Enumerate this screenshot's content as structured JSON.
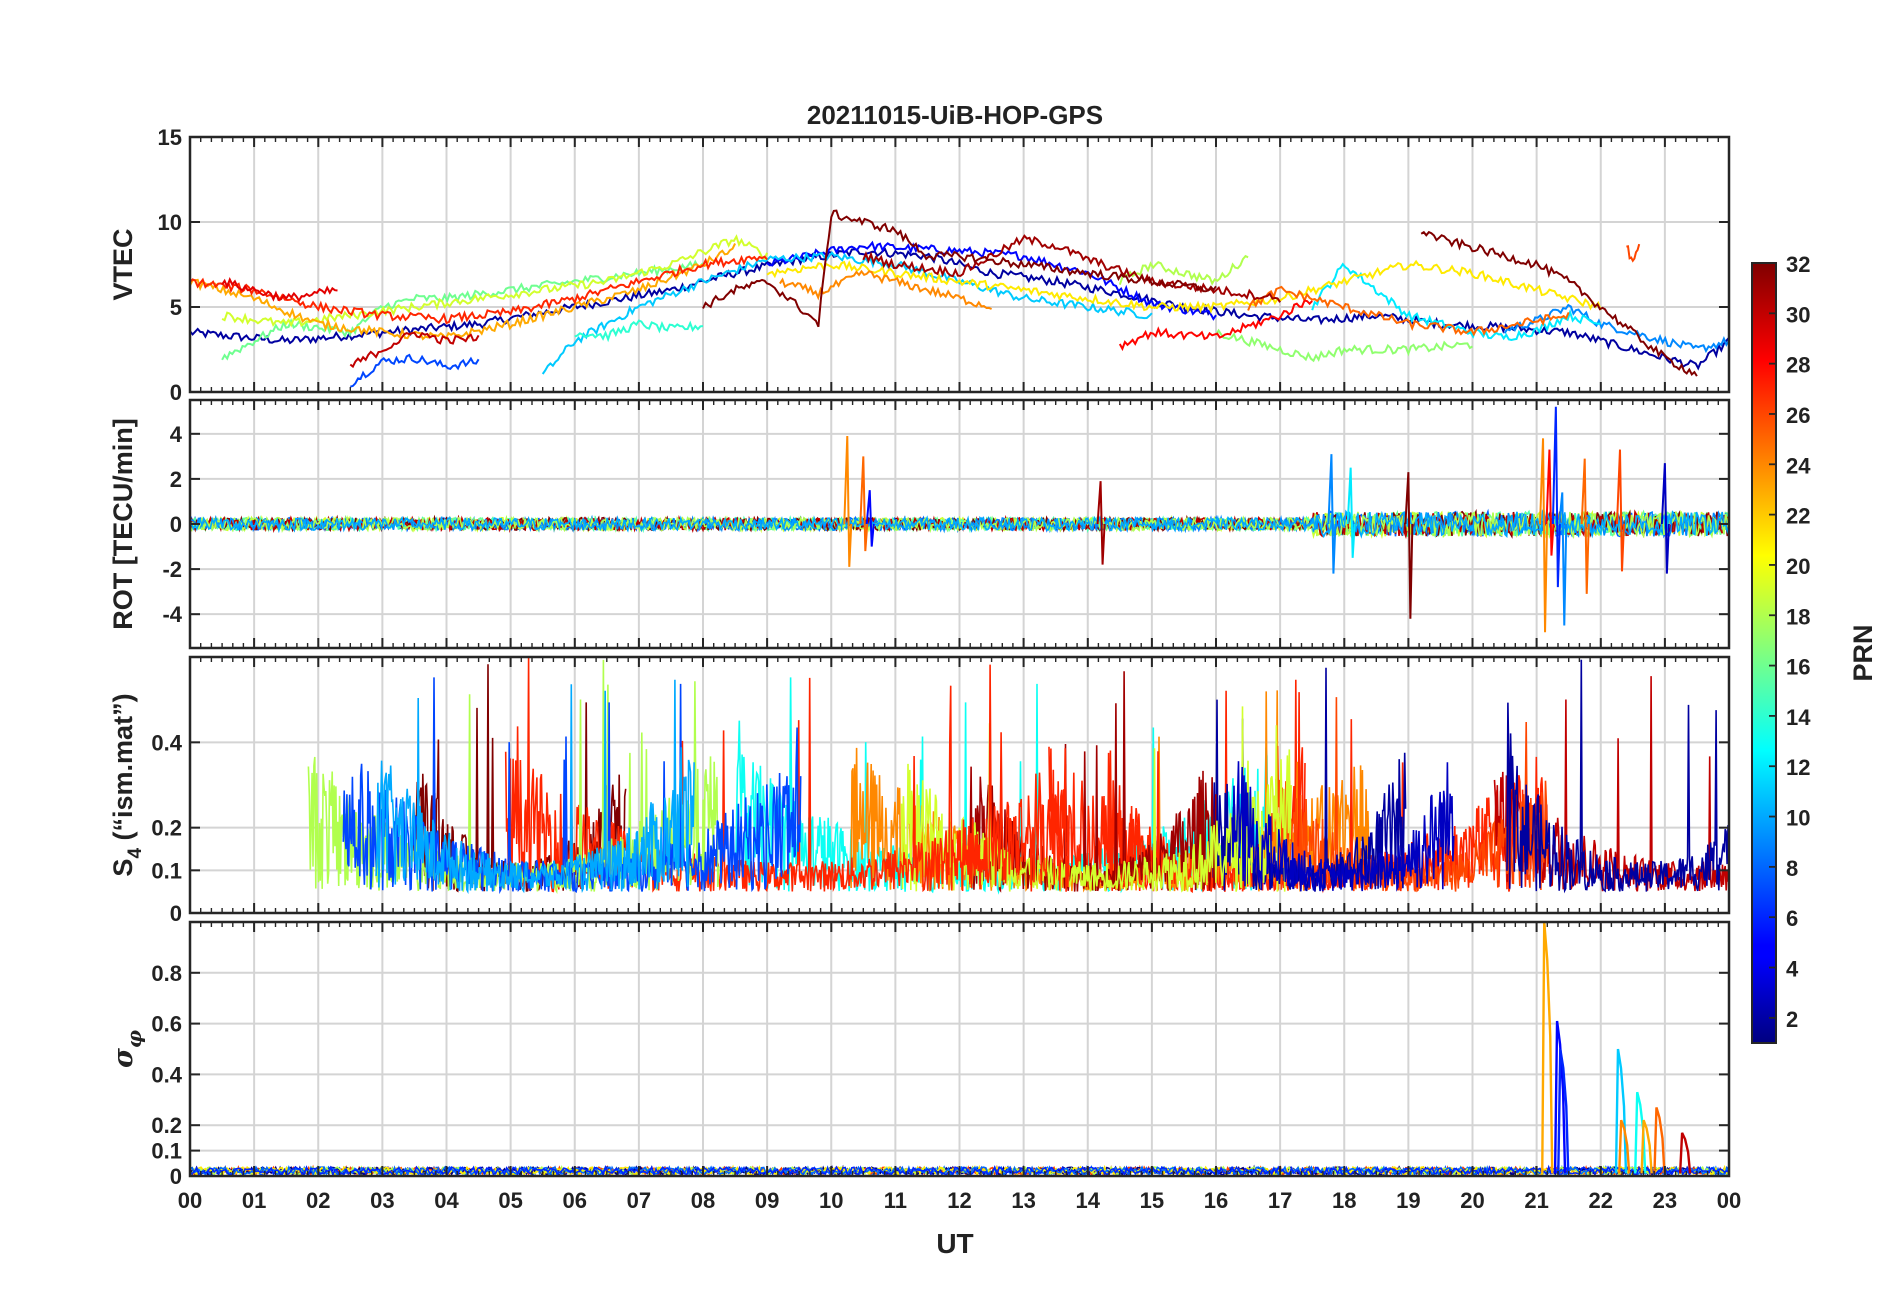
{
  "chart_data": {
    "type": "line",
    "title": "20211015-UiB-HOP-GPS",
    "xlabel": "UT",
    "x_ticks": [
      "00",
      "01",
      "02",
      "03",
      "04",
      "05",
      "06",
      "07",
      "08",
      "09",
      "10",
      "11",
      "12",
      "13",
      "14",
      "15",
      "16",
      "17",
      "18",
      "19",
      "20",
      "21",
      "22",
      "23",
      "00"
    ],
    "xlim_hours": [
      0,
      24
    ],
    "grid": true,
    "panels": [
      {
        "id": "vtec",
        "ylabel": "VTEC",
        "ylim": [
          0,
          15
        ],
        "ytick_values": [
          0,
          5,
          10,
          15
        ],
        "ytick_labels": [
          "0",
          "5",
          "10",
          "15"
        ],
        "series": [
          {
            "prn": 2,
            "x": [
              0,
              1.5,
              3,
              4.5,
              6,
              7.5,
              8.5,
              9.5,
              10.5,
              11.5,
              12.5,
              13.5,
              14.5,
              15.5,
              16.5,
              17.5,
              18.5,
              19.5,
              20.5,
              21.5,
              22.5,
              23.5,
              24
            ],
            "y": [
              3.5,
              3,
              3.5,
              4,
              5,
              6,
              7,
              7.8,
              8.3,
              8,
              7,
              6.5,
              5.8,
              5,
              4.5,
              4.2,
              4.5,
              4,
              3.8,
              3.5,
              2.5,
              1.5,
              3
            ]
          },
          {
            "prn": 5,
            "x": [
              9,
              10,
              10.5,
              11,
              12,
              13,
              14,
              15,
              16
            ],
            "y": [
              7.5,
              8.3,
              8.6,
              8.5,
              8.3,
              8,
              7,
              5.2,
              4.5
            ]
          },
          {
            "prn": 7,
            "x": [
              2.5,
              3,
              3.5,
              4,
              4.5
            ],
            "y": [
              0.5,
              1.8,
              2,
              1.5,
              1.8
            ]
          },
          {
            "prn": 9,
            "x": [
              20.5,
              21,
              21.5,
              22,
              22.5,
              23,
              23.5,
              24
            ],
            "y": [
              3.6,
              4.2,
              5,
              4,
              3.5,
              3,
              2.5,
              3
            ]
          },
          {
            "prn": 11,
            "x": [
              5.5,
              6,
              7,
              8,
              9,
              10,
              11,
              12,
              13,
              14,
              15
            ],
            "y": [
              1,
              3,
              5,
              6.5,
              7.8,
              8,
              7.5,
              6.5,
              5.5,
              5,
              4.5
            ]
          },
          {
            "prn": 12,
            "x": [
              17.5,
              18,
              18.5,
              19,
              19.5,
              20,
              20.5,
              21,
              21.5,
              22
            ],
            "y": [
              5,
              7.5,
              6,
              4.5,
              4,
              3.5,
              3.2,
              3.6,
              4.5,
              4
            ]
          },
          {
            "prn": 14,
            "x": [
              6,
              6.5,
              7,
              7.5,
              8
            ],
            "y": [
              3.5,
              3.3,
              4,
              3.7,
              3.9
            ]
          },
          {
            "prn": 16,
            "x": [
              0.5,
              1,
              1.5,
              2,
              2.5,
              3,
              3.5,
              4,
              5,
              6,
              7,
              8
            ],
            "y": [
              2,
              3,
              4,
              3.8,
              3.5,
              5,
              5.5,
              5.5,
              6,
              6.5,
              7,
              7.5
            ]
          },
          {
            "prn": 17,
            "x": [
              16,
              16.5,
              17,
              17.5,
              18,
              19,
              20
            ],
            "y": [
              3.5,
              3,
              2.5,
              2,
              2.5,
              2.5,
              2.8
            ]
          },
          {
            "prn": 18,
            "x": [
              14.5,
              15,
              15.5,
              16,
              16.5
            ],
            "y": [
              6.5,
              7.5,
              7,
              6.5,
              8
            ]
          },
          {
            "prn": 19,
            "x": [
              0.5,
              1.5,
              2.5,
              3.5,
              4.5,
              5.5,
              6.5,
              7.5,
              8.5,
              9
            ],
            "y": [
              4.5,
              4,
              4.5,
              5,
              5.5,
              6,
              6.5,
              7.5,
              9,
              8
            ]
          },
          {
            "prn": 21,
            "x": [
              9,
              10,
              11,
              12,
              13,
              14,
              15,
              16,
              17,
              18,
              19,
              20,
              21,
              22
            ],
            "y": [
              7,
              7.5,
              7,
              6.5,
              6,
              5.5,
              5,
              5,
              5.5,
              6.5,
              7.5,
              7,
              6,
              5
            ]
          },
          {
            "prn": 23,
            "x": [
              0,
              1,
              2,
              3,
              4,
              5,
              6,
              7,
              8,
              8.5
            ],
            "y": [
              6.5,
              5.5,
              4,
              3.5,
              3.2,
              4,
              5,
              6,
              7.5,
              8.5
            ]
          },
          {
            "prn": 24,
            "x": [
              9.2,
              9.8,
              10.5,
              11.5,
              12.5
            ],
            "y": [
              6.5,
              5.8,
              7,
              6,
              5
            ]
          },
          {
            "prn": 25,
            "x": [
              16.5,
              17,
              17.5,
              18,
              18.5,
              19,
              19.5,
              20,
              21,
              21.5
            ],
            "y": [
              5,
              6,
              5.5,
              5,
              4.5,
              4,
              3.8,
              3.5,
              4.2,
              4.5
            ]
          },
          {
            "prn": 26,
            "x": [
              22.4,
              22.5,
              22.6
            ],
            "y": [
              8.7,
              7.5,
              8.6
            ]
          },
          {
            "prn": 27,
            "x": [
              0,
              1,
              2,
              3,
              4,
              5,
              6,
              7,
              8,
              9
            ],
            "y": [
              6.5,
              6,
              5,
              4.5,
              4.3,
              4.7,
              5.5,
              6.5,
              7.5,
              8
            ]
          },
          {
            "prn": 28,
            "x": [
              14.5,
              15,
              16,
              17,
              17.5
            ],
            "y": [
              2.7,
              3.5,
              3.2,
              4.5,
              5.5
            ]
          },
          {
            "prn": 29,
            "x": [
              0.5,
              1,
              1.5,
              2,
              2.3
            ],
            "y": [
              6.5,
              6,
              5.5,
              5.8,
              6
            ]
          },
          {
            "prn": 30,
            "x": [
              2.5,
              3,
              3.5,
              4,
              4.5
            ],
            "y": [
              1.5,
              2.5,
              3.5,
              3,
              3.2
            ]
          },
          {
            "prn": 31,
            "x": [
              10.5,
              11,
              12,
              12.5,
              13,
              13.5,
              14,
              15,
              16,
              17
            ],
            "y": [
              8,
              7.5,
              7,
              8,
              9,
              8.6,
              7.8,
              6.5,
              6,
              5.5
            ]
          },
          {
            "prn": 32,
            "x": [
              8,
              8.5,
              9,
              9.5,
              9.8,
              10,
              11,
              11.5,
              12,
              13,
              14,
              15,
              16
            ],
            "y": [
              5,
              6,
              6.5,
              5,
              4,
              10.5,
              9.5,
              8,
              8,
              7.5,
              7,
              6.5,
              6
            ]
          },
          {
            "prn": 32,
            "x": [
              19.2,
              19.5,
              20,
              20.5,
              21,
              21.5,
              22,
              22.5,
              23,
              23.5
            ],
            "y": [
              9.5,
              9,
              8.5,
              8,
              7.5,
              6.5,
              5,
              3.5,
              2,
              1
            ]
          }
        ]
      },
      {
        "id": "rot",
        "ylabel": "ROT [TECU/min]",
        "ylim": [
          -5.5,
          5.5
        ],
        "ytick_values": [
          -4,
          -2,
          0,
          2,
          4
        ],
        "ytick_labels": [
          "-4",
          "-2",
          "0",
          "2",
          "4"
        ],
        "events": [
          {
            "t": 10.25,
            "lo": -1.9,
            "hi": 3.9,
            "prn": 24
          },
          {
            "t": 10.5,
            "lo": -1.2,
            "hi": 3.0,
            "prn": 25
          },
          {
            "t": 10.6,
            "lo": -1.0,
            "hi": 1.5,
            "prn": 5
          },
          {
            "t": 14.2,
            "lo": -1.8,
            "hi": 1.9,
            "prn": 31
          },
          {
            "t": 17.8,
            "lo": -2.2,
            "hi": 3.1,
            "prn": 9
          },
          {
            "t": 18.1,
            "lo": -1.5,
            "hi": 2.5,
            "prn": 12
          },
          {
            "t": 19.0,
            "lo": -4.2,
            "hi": 2.3,
            "prn": 32
          },
          {
            "t": 21.1,
            "lo": -4.8,
            "hi": 3.8,
            "prn": 24
          },
          {
            "t": 21.2,
            "lo": -1.4,
            "hi": 3.3,
            "prn": 28
          },
          {
            "t": 21.3,
            "lo": -2.8,
            "hi": 5.2,
            "prn": 6
          },
          {
            "t": 21.4,
            "lo": -4.5,
            "hi": 1.4,
            "prn": 9
          },
          {
            "t": 21.75,
            "lo": -3.1,
            "hi": 2.9,
            "prn": 25
          },
          {
            "t": 22.3,
            "lo": -2.1,
            "hi": 3.3,
            "prn": 26
          },
          {
            "t": 23.0,
            "lo": -2.2,
            "hi": 2.7,
            "prn": 3
          }
        ]
      },
      {
        "id": "s4",
        "ylabel": "S4 (\"ism.mat\")",
        "ylim": [
          0,
          0.6
        ],
        "ytick_values": [
          0,
          0.1,
          0.2,
          0.4
        ],
        "ytick_labels": [
          "0",
          "0.1",
          "0.2",
          "0.4"
        ]
      },
      {
        "id": "sigma",
        "ylabel": "σφ",
        "ylim": [
          0,
          1
        ],
        "ytick_values": [
          0,
          0.1,
          0.2,
          0.4,
          0.6,
          0.8
        ],
        "ytick_labels": [
          "0",
          "0.1",
          "0.2",
          "0.4",
          "0.6",
          "0.8"
        ],
        "events": [
          {
            "t": 21.15,
            "peak": 1.0,
            "prn": 23
          },
          {
            "t": 21.35,
            "peak": 0.61,
            "prn": 5
          },
          {
            "t": 21.4,
            "peak": 0.5,
            "prn": 6
          },
          {
            "t": 22.3,
            "peak": 0.5,
            "prn": 11
          },
          {
            "t": 22.35,
            "peak": 0.22,
            "prn": 24
          },
          {
            "t": 22.6,
            "peak": 0.33,
            "prn": 13
          },
          {
            "t": 22.7,
            "peak": 0.22,
            "prn": 23
          },
          {
            "t": 22.9,
            "peak": 0.27,
            "prn": 25
          },
          {
            "t": 23.3,
            "peak": 0.17,
            "prn": 30
          }
        ]
      }
    ],
    "colorbar": {
      "label": "PRN",
      "colormap": "jet",
      "range": [
        1,
        32
      ],
      "tick_values": [
        2,
        4,
        6,
        8,
        10,
        12,
        14,
        16,
        18,
        20,
        22,
        24,
        26,
        28,
        30,
        32
      ],
      "tick_labels": [
        "2",
        "4",
        "6",
        "8",
        "10",
        "12",
        "14",
        "16",
        "18",
        "20",
        "22",
        "24",
        "26",
        "28",
        "30",
        "32"
      ]
    }
  }
}
